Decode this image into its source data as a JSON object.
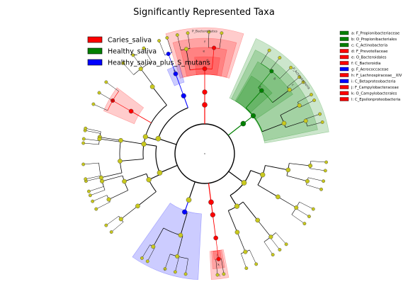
{
  "chart_data": {
    "type": "cladogram",
    "title": "Significantly Represented Taxa",
    "groups": [
      {
        "name": "Caries_saliva",
        "color": "#ff0000"
      },
      {
        "name": "Healthy_saliva",
        "color": "#008000"
      },
      {
        "name": "Healthy_saliva_plus_S_mutans",
        "color": "#0000ff"
      }
    ],
    "biomarkers": [
      {
        "key": "a",
        "taxon": "a: F_Propionibacteriaceae",
        "group": "Healthy_saliva",
        "color": "#008000"
      },
      {
        "key": "b",
        "taxon": "b: O_Propionibacteriales",
        "group": "Healthy_saliva",
        "color": "#008000"
      },
      {
        "key": "c",
        "taxon": "c: C_Actinobacteria",
        "group": "Healthy_saliva",
        "color": "#008000"
      },
      {
        "key": "d",
        "taxon": "d: F_Prevotellaceae",
        "group": "Caries_saliva",
        "color": "#ff0000"
      },
      {
        "key": "e",
        "taxon": "e: O_Bacteroidales",
        "group": "Caries_saliva",
        "color": "#ff0000"
      },
      {
        "key": "f",
        "taxon": "f: C_Bacteroidia",
        "group": "Caries_saliva",
        "color": "#ff0000"
      },
      {
        "key": "g",
        "taxon": "g: F_Aerococcaceae",
        "group": "Healthy_saliva_plus_S_mutans",
        "color": "#0000ff"
      },
      {
        "key": "h",
        "taxon": "h: F_Lachnospiraceae__XIV",
        "group": "Caries_saliva",
        "color": "#ff0000"
      },
      {
        "key": "i",
        "taxon": "i: C_Betaproteobacteria",
        "group": "Healthy_saliva_plus_S_mutans",
        "color": "#0000ff"
      },
      {
        "key": "j",
        "taxon": "j: F_Campylobacteraceae",
        "group": "Caries_saliva",
        "color": "#ff0000"
      },
      {
        "key": "k",
        "taxon": "k: O_Campylobacterales",
        "group": "Caries_saliva",
        "color": "#ff0000"
      },
      {
        "key": "l",
        "taxon": "l: C_Epsilonproteobacteria",
        "group": "Caries_saliva",
        "color": "#ff0000"
      }
    ],
    "highlighted_clades": [
      {
        "label": "P_Bacteroidetes",
        "group": "Caries_saliva",
        "color": "#ff0000"
      },
      {
        "label": "P_Actinobacteria",
        "group": "Healthy_saliva",
        "color": "#008000"
      },
      {
        "label": "f",
        "group": "Caries_saliva",
        "color": "#ff0000"
      },
      {
        "label": "e",
        "group": "Caries_saliva",
        "color": "#ff0000"
      },
      {
        "label": "d",
        "group": "Caries_saliva",
        "color": "#ff0000"
      },
      {
        "label": "c",
        "group": "Healthy_saliva",
        "color": "#008000"
      },
      {
        "label": "b",
        "group": "Healthy_saliva",
        "color": "#008000"
      },
      {
        "label": "a",
        "group": "Healthy_saliva",
        "color": "#008000"
      },
      {
        "label": "g",
        "group": "Healthy_saliva_plus_S_mutans",
        "color": "#0000ff"
      },
      {
        "label": "h",
        "group": "Caries_saliva",
        "color": "#ff0000"
      },
      {
        "label": "i",
        "group": "Healthy_saliva_plus_S_mutans",
        "color": "#0000ff"
      },
      {
        "label": "j",
        "group": "Caries_saliva",
        "color": "#ff0000"
      },
      {
        "label": "k",
        "group": "Caries_saliva",
        "color": "#ff0000"
      },
      {
        "label": "l",
        "group": "Caries_saliva",
        "color": "#ff0000"
      }
    ],
    "colors": {
      "neutral_node": "#c8c81e",
      "branch": "#000000"
    }
  }
}
